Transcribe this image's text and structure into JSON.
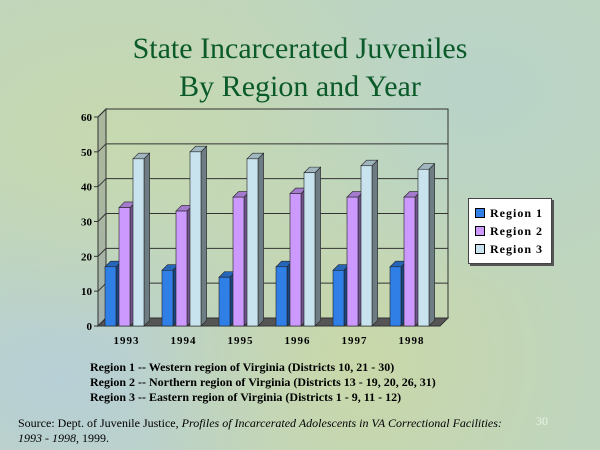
{
  "title_line1": "State Incarcerated Juveniles",
  "title_line2": "By Region and Year",
  "colors": {
    "region1": "#2f7fe6",
    "region2": "#cc99ff",
    "region3": "#c8e3ee",
    "title": "#0b5a2a"
  },
  "legend": [
    "Region 1",
    "Region 2",
    "Region 3"
  ],
  "notes": [
    "Region 1 -- Western region of Virginia (Districts 10, 21 - 30)",
    "Region 2 -- Northern region of Virginia (Districts 13 - 19, 20, 26, 31)",
    "Region 3 -- Eastern region of Virginia (Districts 1 - 9, 11 - 12)"
  ],
  "source": {
    "prefix": "Source: Dept. of Juvenile Justice, ",
    "italic": "Profiles of Incarcerated Adolescents in VA Correctional Facilities: 1993 - 1998",
    "suffix": ", 1999."
  },
  "page_number": "30",
  "chart_data": {
    "type": "bar",
    "title": "State Incarcerated Juveniles By Region and Year",
    "categories": [
      "1993",
      "1994",
      "1995",
      "1996",
      "1997",
      "1998"
    ],
    "series": [
      {
        "name": "Region 1",
        "values": [
          17,
          16,
          14,
          17,
          16,
          17
        ]
      },
      {
        "name": "Region 2",
        "values": [
          34,
          33,
          37,
          38,
          37,
          37
        ]
      },
      {
        "name": "Region 3",
        "values": [
          48,
          50,
          48,
          44,
          46,
          45
        ]
      }
    ],
    "ylim": [
      0,
      60
    ],
    "yticks": [
      0,
      10,
      20,
      30,
      40,
      50,
      60
    ],
    "grid": true,
    "legend_position": "right",
    "style": "3d-clustered"
  }
}
